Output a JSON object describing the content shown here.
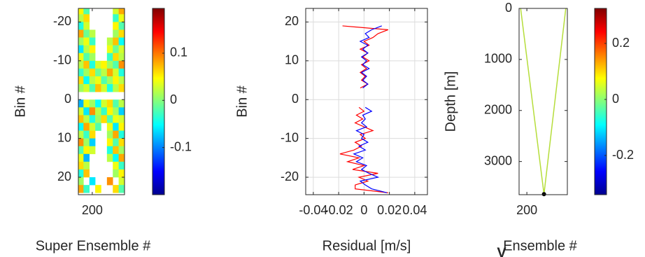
{
  "chart_data": [
    {
      "type": "heatmap",
      "x_label": "Super Ensemble #",
      "y_label": "Bin #",
      "x": [
        184,
        192,
        200,
        208,
        216,
        224,
        232,
        240
      ],
      "y": [
        -23,
        -21,
        -19,
        -17,
        -15,
        -13,
        -11,
        -9,
        -7,
        -5,
        -3,
        -1,
        1,
        3,
        5,
        7,
        9,
        11,
        13,
        15,
        17,
        19,
        21,
        23
      ],
      "z": [
        [
          0.05,
          -0.02,
          null,
          null,
          null,
          null,
          0.03,
          0.08
        ],
        [
          0.02,
          0.06,
          null,
          null,
          null,
          null,
          -0.03,
          0.04
        ],
        [
          -0.04,
          0.03,
          null,
          null,
          null,
          null,
          0.05,
          -0.02
        ],
        [
          0.08,
          -0.01,
          0.02,
          null,
          null,
          null,
          0.01,
          0.06
        ],
        [
          0.01,
          0.04,
          -0.03,
          null,
          null,
          0.02,
          0.07,
          -0.05
        ],
        [
          -0.06,
          0.02,
          0.05,
          null,
          null,
          0.04,
          -0.01,
          0.03
        ],
        [
          0.04,
          -0.02,
          0.01,
          null,
          null,
          -0.03,
          0.06,
          0.02
        ],
        [
          0.02,
          0.07,
          -0.04,
          0.03,
          0.05,
          0.01,
          -0.02,
          0.09
        ],
        [
          -0.03,
          0.01,
          0.06,
          -0.01,
          0.02,
          0.08,
          0.03,
          -0.04
        ],
        [
          0.06,
          -0.05,
          0.02,
          0.04,
          -0.02,
          0.01,
          0.05,
          0.02
        ],
        [
          0.01,
          0.03,
          -0.02,
          0.07,
          0.03,
          -0.04,
          0.02,
          0.06
        ],
        [
          null,
          null,
          null,
          null,
          null,
          null,
          null,
          null
        ],
        [
          -0.08,
          0.04,
          0.01,
          -0.05,
          0.03,
          0.06,
          -0.02,
          0.02
        ],
        [
          0.03,
          -0.06,
          0.09,
          0.02,
          -0.03,
          0.05,
          0.01,
          -0.07
        ],
        [
          0.07,
          0.02,
          -0.04,
          0.01,
          0.06,
          -0.02,
          0.04,
          0.03
        ],
        [
          -0.05,
          0.08,
          0.03,
          -0.02,
          null,
          0.04,
          -0.06,
          0.05
        ],
        [
          0.02,
          -0.03,
          0.06,
          null,
          null,
          0.01,
          0.08,
          -0.04
        ],
        [
          0.09,
          0.01,
          -0.07,
          null,
          null,
          0.05,
          -0.02,
          0.06
        ],
        [
          -0.02,
          0.05,
          0.03,
          null,
          null,
          -0.04,
          0.07,
          0.01
        ],
        [
          0.04,
          -0.08,
          null,
          null,
          null,
          0.02,
          -0.05,
          0.08
        ],
        [
          0.06,
          0.02,
          null,
          null,
          null,
          null,
          0.04,
          -0.03
        ],
        [
          -0.04,
          0.07,
          null,
          null,
          null,
          null,
          0.01,
          0.05
        ],
        [
          0.01,
          null,
          -0.06,
          null,
          null,
          0.09,
          null,
          0.03
        ],
        [
          0.08,
          -0.03,
          null,
          0.05,
          null,
          null,
          0.06,
          -0.02
        ]
      ],
      "xlim": [
        181,
        244
      ],
      "ylim": [
        -23.5,
        24.5
      ],
      "y_reversed": true,
      "xticks": [
        200
      ],
      "yticks": [
        -20,
        -10,
        0,
        10,
        20
      ],
      "colormap": "jet",
      "colorbar_lim": [
        -0.2,
        0.195
      ],
      "colorbar_ticks": [
        -0.1,
        0,
        0.1
      ]
    },
    {
      "type": "line",
      "orientation": "horizontal",
      "x_label": "Residual [m/s]",
      "y_label": "Bin #",
      "y": [
        19,
        18,
        17,
        16,
        15,
        14,
        13,
        12,
        11,
        10,
        9,
        8,
        7,
        6,
        5,
        4,
        3,
        2,
        1,
        0,
        -1,
        -2,
        -3,
        -4,
        -5,
        -6,
        -7,
        -8,
        -9,
        -10,
        -11,
        -12,
        -13,
        -14,
        -15,
        -16,
        -17,
        -18,
        -19,
        -20,
        -21,
        -22,
        -23,
        -24
      ],
      "series": [
        {
          "color": "#ff0000",
          "values": [
            -0.017,
            0.019,
            0.011,
            0.007,
            0,
            0.004,
            -0.003,
            0.003,
            -0.001,
            0.004,
            -0.002,
            0.002,
            -0.003,
            0.001,
            -0.002,
            0.003,
            -0.003,
            null,
            null,
            null,
            null,
            -0.004,
            0,
            -0.006,
            -0.001,
            -0.007,
            0,
            0.007,
            -0.003,
            0.001,
            -0.007,
            -0.002,
            -0.008,
            -0.019,
            -0.004,
            -0.013,
            0,
            -0.009,
            0.011,
            -0.004,
            0.003,
            -0.007,
            -0.007,
            0.019
          ]
        },
        {
          "color": "#0000ff",
          "values": [
            0.014,
            0.006,
            0.001,
            0.004,
            -0.003,
            0.003,
            -0.001,
            0.003,
            -0.002,
            0.002,
            -0.001,
            0.004,
            -0.002,
            0.002,
            -0.001,
            0.003,
            -0.001,
            null,
            null,
            null,
            null,
            0.001,
            0.006,
            -0.001,
            0.001,
            -0.002,
            0.002,
            -0.006,
            0,
            -0.002,
            0.003,
            -0.004,
            0.001,
            -0.008,
            -0.001,
            -0.006,
            0.002,
            -0.002,
            0.004,
            0.011,
            -0.003,
            0.001,
            0.006,
            0.018
          ]
        }
      ],
      "xlim": [
        -0.046,
        0.05
      ],
      "ylim": [
        -24.5,
        23.5
      ],
      "xticks": [
        -0.04,
        -0.02,
        0,
        0.02,
        0.04
      ],
      "yticks": [
        -20,
        -10,
        0,
        10,
        20
      ],
      "grid": true
    },
    {
      "type": "track",
      "x_label": "Ensemble #",
      "y_label": "Depth [m]",
      "x": [
        196,
        211,
        225
      ],
      "values": [
        0,
        3640,
        0
      ],
      "color": "#b5dd3a",
      "marker": {
        "x": 211,
        "value": 3640,
        "color": "#000000"
      },
      "xlim": [
        195,
        226
      ],
      "ylim": [
        0,
        3650
      ],
      "y_reversed": true,
      "xticks": [
        200
      ],
      "yticks": [
        0,
        1000,
        2000,
        3000
      ],
      "colormap": "jet",
      "colorbar_lim": [
        -0.34,
        0.325
      ],
      "colorbar_ticks": [
        -0.2,
        0,
        0.2
      ]
    }
  ],
  "caption": "V"
}
